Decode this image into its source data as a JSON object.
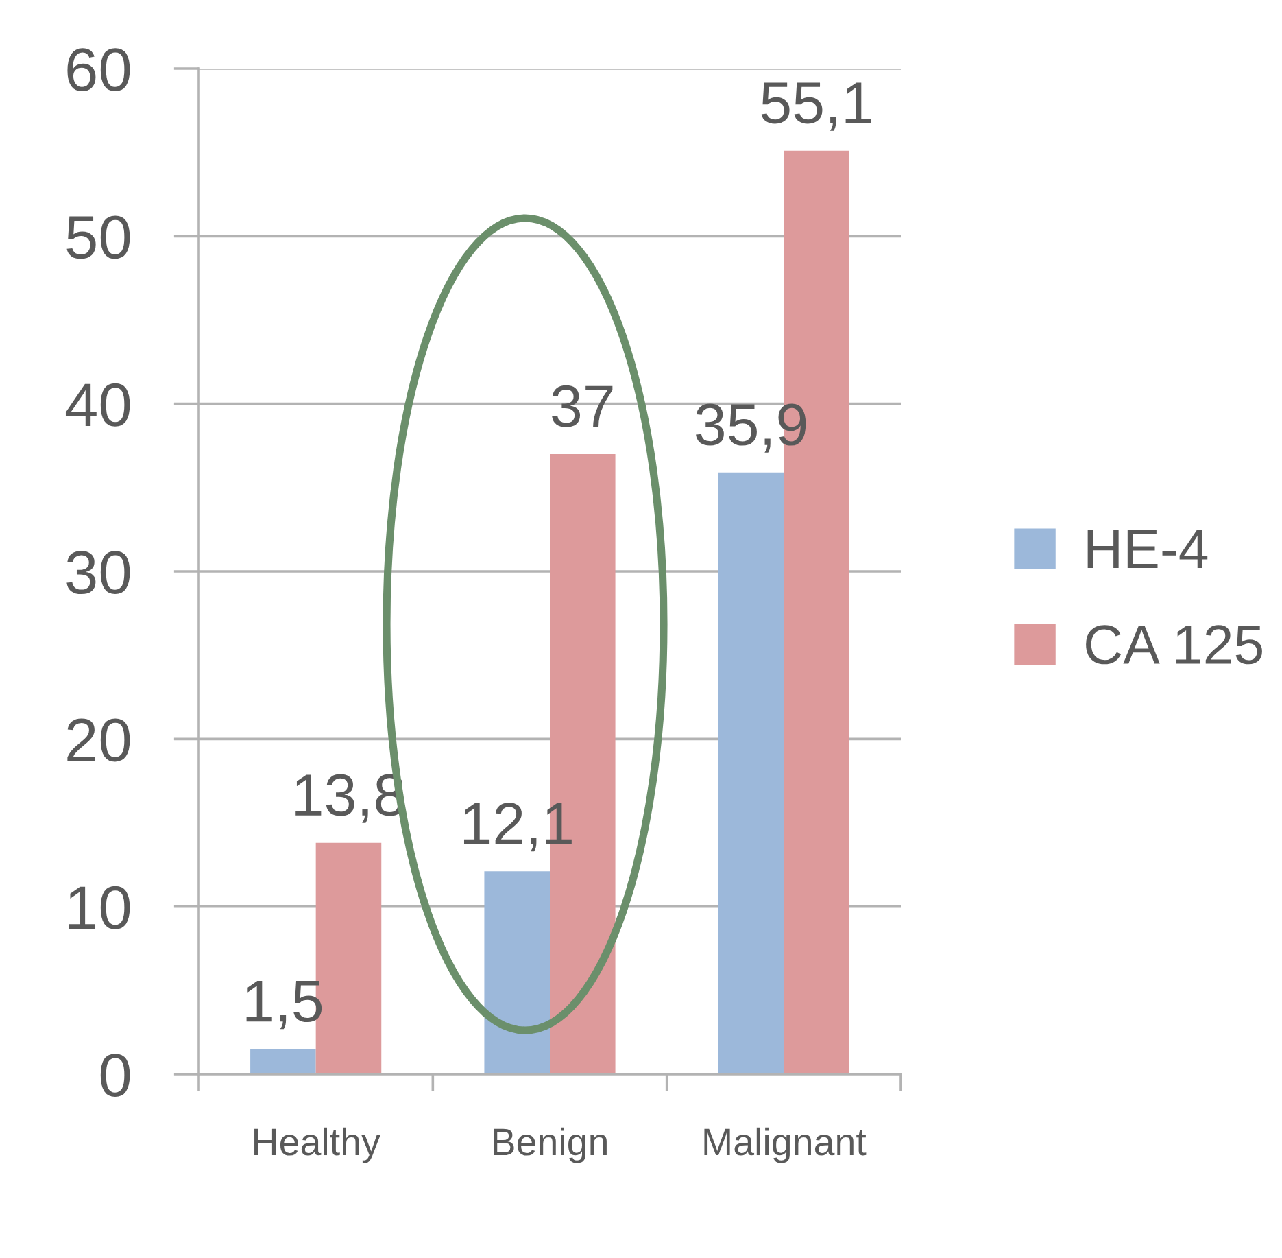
{
  "chart_data": {
    "type": "bar",
    "categories": [
      "Healthy",
      "Benign",
      "Malignant"
    ],
    "series": [
      {
        "name": "HE-4",
        "color": "#9cb8da",
        "values": [
          1.5,
          12.1,
          35.9
        ],
        "value_labels": [
          "1,5",
          "12,1",
          "35,9"
        ]
      },
      {
        "name": "CA 125",
        "color": "#dd9a9b",
        "values": [
          13.8,
          37,
          55.1
        ],
        "value_labels": [
          "13,8",
          "37",
          "55,1"
        ]
      }
    ],
    "ylim": [
      0,
      60
    ],
    "yticks": [
      0,
      10,
      20,
      30,
      40,
      50,
      60
    ],
    "grid": "y",
    "legend": "right"
  }
}
